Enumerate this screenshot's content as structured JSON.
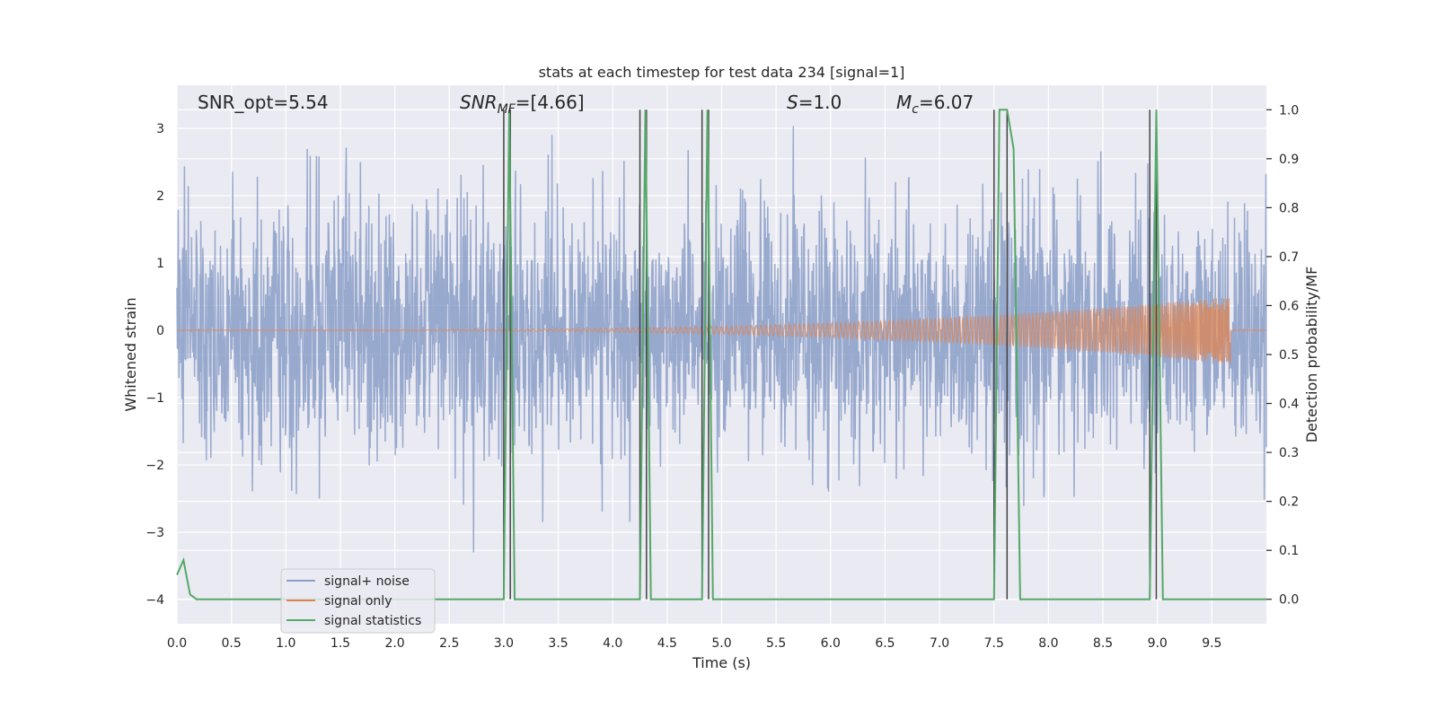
{
  "chart_data": {
    "type": "line",
    "title": "stats at each timestep for test data 234 [signal=1]",
    "xlabel": "Time (s)",
    "ylabel_left": "Whitened strain",
    "ylabel_right": "Detection probability/MF",
    "xlim": [
      0.0,
      10.0
    ],
    "ylim_left": [
      -4.36,
      3.64
    ],
    "ylim_right": [
      -0.05,
      1.05
    ],
    "x_ticks": [
      "0.0",
      "0.5",
      "1.0",
      "1.5",
      "2.0",
      "2.5",
      "3.0",
      "3.5",
      "4.0",
      "4.5",
      "5.0",
      "5.5",
      "6.0",
      "6.5",
      "7.0",
      "7.5",
      "8.0",
      "8.5",
      "9.0",
      "9.5"
    ],
    "y_ticks_left": [
      "3",
      "2",
      "1",
      "0",
      "−1",
      "−2",
      "−3",
      "−4"
    ],
    "y_ticks_right": [
      "1.0",
      "0.9",
      "0.8",
      "0.7",
      "0.6",
      "0.5",
      "0.4",
      "0.3",
      "0.2",
      "0.1",
      "0.0"
    ],
    "grid": true,
    "legend_position": "lower-left",
    "annotations": {
      "snr_opt": "SNR_opt=5.54",
      "snr_mf": "SNR",
      "snr_mf_sub": "MF",
      "snr_mf_val": "=[4.66]",
      "s": "S",
      "s_val": "=1.0",
      "mc": "M",
      "mc_sub": "c",
      "mc_val": "=6.07"
    },
    "series": [
      {
        "name": "signal+ noise",
        "color": "#8a9ec8",
        "description_values": "whitened strain noise, amplitude mostly within [-2, 2] with spikes to about +3.2 and -3.3",
        "envelope": {
          "typical_abs": 1.8,
          "max": 3.2,
          "min": -3.3
        }
      },
      {
        "name": "signal only",
        "color": "#dd8452",
        "chirp": {
          "start_t": 0.0,
          "end_t": 9.67,
          "start_amp": 0.0,
          "peak_amp": 0.5
        }
      },
      {
        "name": "signal statistics",
        "color": "#55a868",
        "x": [
          0.0,
          0.06,
          0.12,
          0.18,
          3.0,
          3.05,
          3.1,
          3.15,
          3.2,
          4.25,
          4.3,
          4.35,
          4.82,
          4.87,
          4.92,
          7.5,
          7.55,
          7.62,
          7.68,
          7.74,
          7.8,
          8.0,
          8.93,
          8.99,
          9.05,
          10.0
        ],
        "y": [
          0.05,
          0.08,
          0.01,
          0.0,
          0.0,
          1.0,
          0.0,
          0.0,
          0.0,
          0.0,
          1.0,
          0.0,
          0.0,
          1.0,
          0.0,
          0.0,
          1.0,
          1.0,
          0.92,
          0.0,
          0.0,
          0.0,
          0.0,
          1.0,
          0.0,
          0.0
        ]
      }
    ],
    "vertical_lines": {
      "color": "#444444",
      "x": [
        3.0,
        3.06,
        4.25,
        4.31,
        4.82,
        4.88,
        7.5,
        7.62,
        8.93,
        8.99
      ],
      "y_top_right": 1.0,
      "y_bottom_right": 0.0
    },
    "legend": [
      {
        "label": "signal+ noise",
        "color": "#8a9ec8"
      },
      {
        "label": "signal only",
        "color": "#dd8452"
      },
      {
        "label": "signal statistics",
        "color": "#55a868"
      }
    ]
  }
}
